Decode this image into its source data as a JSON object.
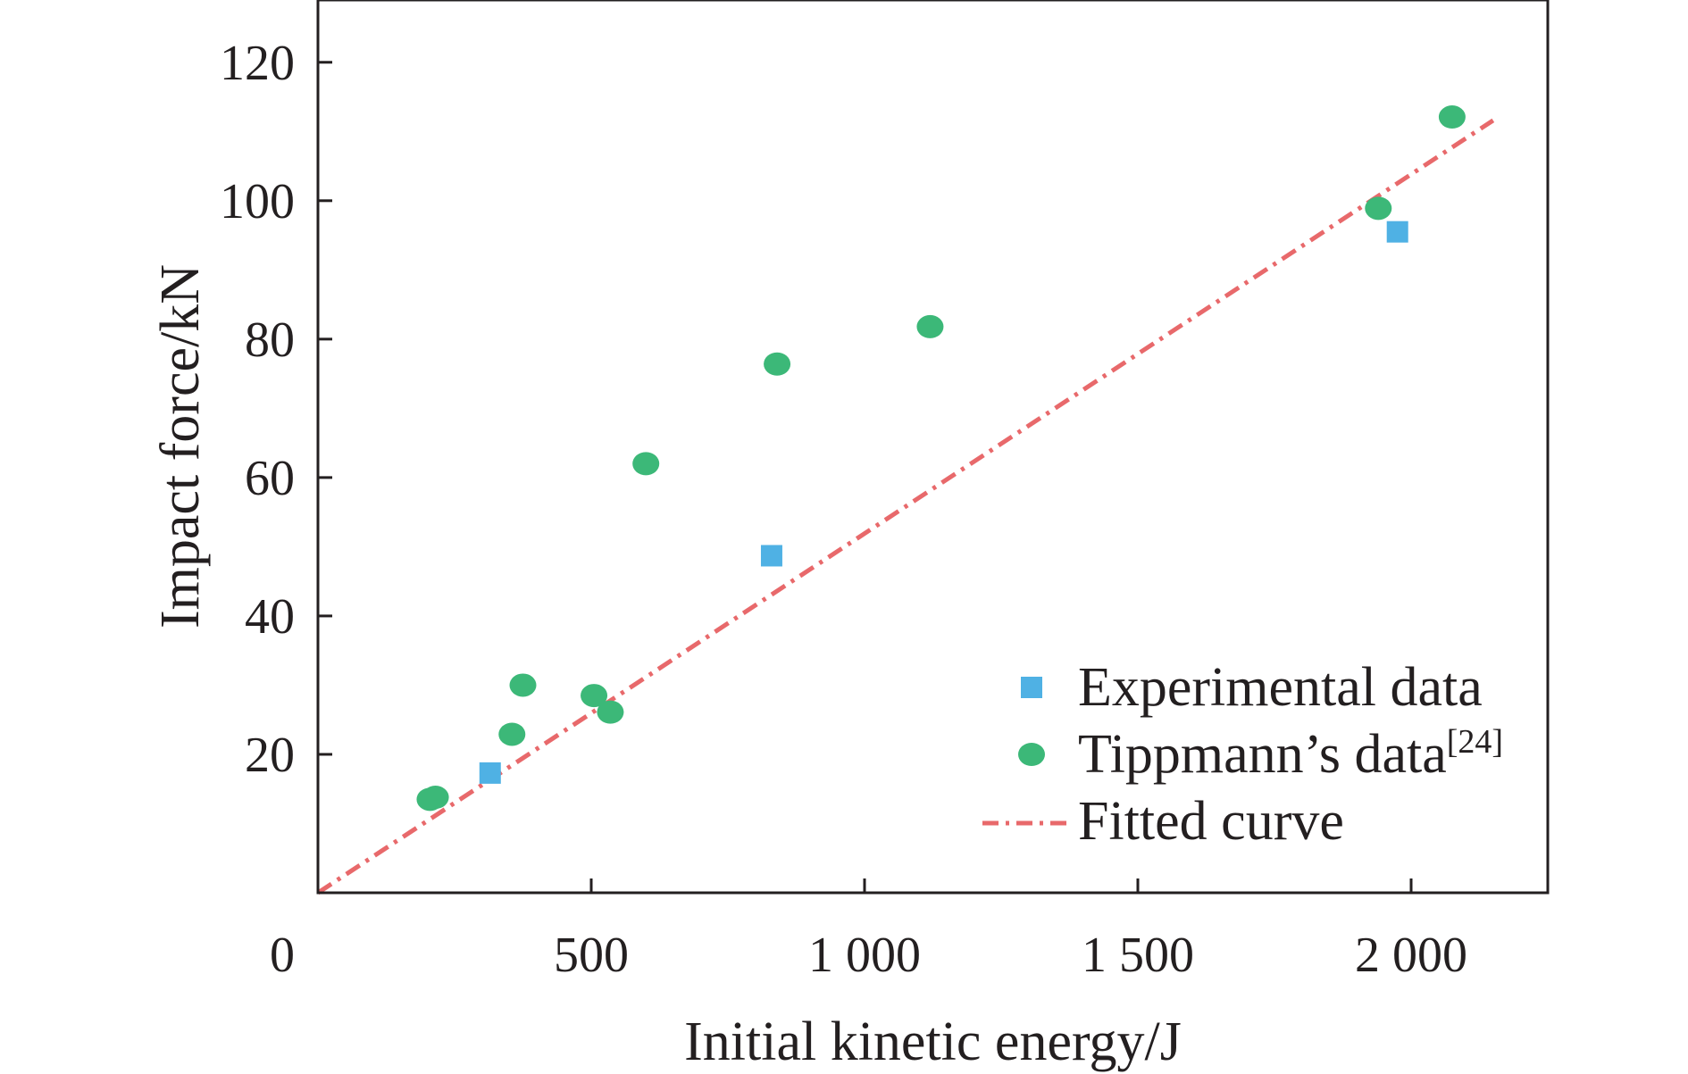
{
  "colors": {
    "experimental": "#4fb1e4",
    "tippmann": "#3cb878",
    "fitted": "#e8696b",
    "axis": "#231f20"
  },
  "chart_data": {
    "type": "scatter",
    "xlabel": "Initial kinetic energy/J",
    "ylabel": "Impact force/kN",
    "xlim": [
      0,
      2250
    ],
    "ylim": [
      0,
      129
    ],
    "x_ticks": [
      0,
      500,
      1000,
      1500,
      2000
    ],
    "x_tick_labels": [
      "0",
      "500",
      "1 000",
      "1 500",
      "2 000"
    ],
    "y_ticks": [
      20,
      40,
      60,
      80,
      100,
      120
    ],
    "y_tick_labels": [
      "20",
      "40",
      "60",
      "80",
      "100",
      "120"
    ],
    "grid": false,
    "legend_position": "bottom-right",
    "series": [
      {
        "name": "Experimental data",
        "marker": "square",
        "points": [
          {
            "x": 315,
            "y": 17.3
          },
          {
            "x": 830,
            "y": 48.7
          },
          {
            "x": 1975,
            "y": 95.5
          }
        ]
      },
      {
        "name": "Tippmann’s data",
        "name_sup": "[24]",
        "marker": "circle",
        "points": [
          {
            "x": 205,
            "y": 13.5
          },
          {
            "x": 215,
            "y": 13.8
          },
          {
            "x": 355,
            "y": 22.9
          },
          {
            "x": 375,
            "y": 30.0
          },
          {
            "x": 505,
            "y": 28.5
          },
          {
            "x": 535,
            "y": 26.1
          },
          {
            "x": 600,
            "y": 62.0
          },
          {
            "x": 840,
            "y": 76.4
          },
          {
            "x": 1120,
            "y": 81.8
          },
          {
            "x": 1940,
            "y": 98.9
          },
          {
            "x": 2075,
            "y": 112.1
          }
        ]
      },
      {
        "name": "Fitted curve",
        "marker": "dash-dot-line",
        "points": [
          {
            "x": 0,
            "y": 0
          },
          {
            "x": 2150,
            "y": 111.6
          }
        ]
      }
    ]
  }
}
